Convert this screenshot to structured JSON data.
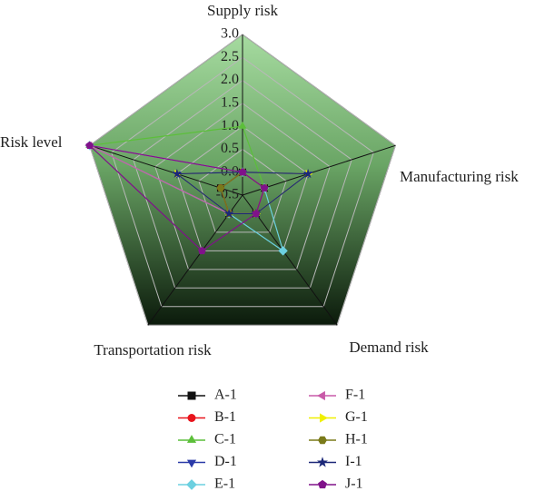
{
  "chart_data": {
    "type": "radar",
    "categories": [
      "Supply risk",
      "Manufacturing risk",
      "Demand risk",
      "Transportation risk",
      "Risk level"
    ],
    "rlim": [
      -0.5,
      3.0
    ],
    "rticks": [
      {
        "value": -0.5,
        "label": "-0.5"
      },
      {
        "value": 0,
        "label": "0.0"
      },
      {
        "value": 0.5,
        "label": "0.5"
      },
      {
        "value": 1,
        "label": "1.0"
      },
      {
        "value": 1.5,
        "label": "1.5"
      },
      {
        "value": 2,
        "label": "2.0"
      },
      {
        "value": 2.5,
        "label": "2.5"
      },
      {
        "value": 3,
        "label": "3.0"
      }
    ],
    "grid": true,
    "series": [
      {
        "name": "A-1",
        "color": "#111111",
        "marker": "square",
        "values": [
          0,
          0,
          0,
          0,
          0
        ]
      },
      {
        "name": "B-1",
        "color": "#e8141c",
        "marker": "circle",
        "values": [
          0,
          0,
          0,
          0,
          0
        ]
      },
      {
        "name": "C-1",
        "color": "#5cbf3a",
        "marker": "triangle-up",
        "values": [
          1,
          0,
          0,
          0,
          3
        ]
      },
      {
        "name": "D-1",
        "color": "#2a3aa8",
        "marker": "triangle-down",
        "values": [
          0,
          1,
          0,
          0,
          1
        ]
      },
      {
        "name": "E-1",
        "color": "#6cd0e0",
        "marker": "diamond",
        "values": [
          0,
          0,
          1,
          0,
          3
        ]
      },
      {
        "name": "F-1",
        "color": "#c85aa8",
        "marker": "triangle-left",
        "values": [
          0,
          0,
          0,
          0,
          3
        ]
      },
      {
        "name": "G-1",
        "color": "#f0f000",
        "marker": "triangle-right",
        "values": [
          0,
          1,
          0,
          0,
          1
        ]
      },
      {
        "name": "H-1",
        "color": "#7a7a1a",
        "marker": "hexagon",
        "values": [
          0,
          0,
          0,
          0,
          0
        ]
      },
      {
        "name": "I-1",
        "color": "#1c2878",
        "marker": "star",
        "values": [
          0,
          1,
          0,
          0,
          1
        ]
      },
      {
        "name": "J-1",
        "color": "#80128a",
        "marker": "pentagon",
        "values": [
          0,
          0,
          0,
          1,
          3
        ]
      }
    ]
  }
}
